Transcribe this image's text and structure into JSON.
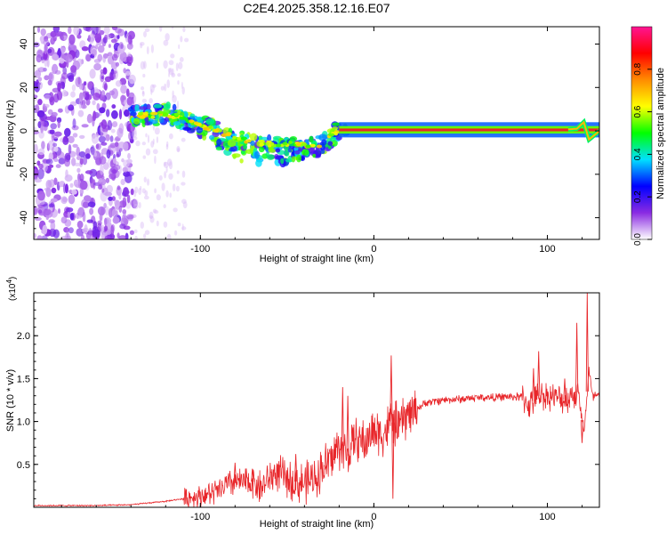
{
  "title": "C2E4.2025.358.12.16.E07",
  "colors": {
    "background": "#ffffff",
    "axis": "#000000",
    "snr_line": "#e8262a",
    "ridge": "#e8262a"
  },
  "chart_data": [
    {
      "type": "heatmap",
      "title": "C2E4.2025.358.12.16.E07",
      "xlabel": "Height of straight line (km)",
      "ylabel": "Frequency (Hz)",
      "xlim": [
        -196,
        130
      ],
      "ylim": [
        -50,
        48
      ],
      "xticks": [
        -100,
        0,
        100
      ],
      "yticks": [
        -40,
        -20,
        0,
        20,
        40
      ],
      "ridge": {
        "x": [
          -140,
          -130,
          -120,
          -110,
          -100,
          -90,
          -80,
          -70,
          -60,
          -50,
          -40,
          -33,
          -25,
          -20,
          -15,
          -10,
          0,
          10,
          20,
          50,
          100,
          117,
          121,
          124,
          130
        ],
        "y": [
          7,
          7,
          8,
          6,
          2,
          0,
          -3,
          -5,
          -6,
          -6,
          -6,
          -8,
          -3,
          0,
          1,
          1,
          1,
          1,
          0,
          0,
          0,
          1,
          4,
          -4,
          0
        ]
      },
      "colorbar": {
        "label": "Normalized spectral amplitude",
        "range": [
          0,
          1
        ],
        "ticks": [
          "0.0",
          "0.2",
          "0.4",
          "0.6",
          "0.8"
        ],
        "tick_values": [
          0.0,
          0.2,
          0.4,
          0.6,
          0.8
        ],
        "stops": [
          "#ffffff",
          "#8a2be2",
          "#0000ff",
          "#00e0ff",
          "#00ff00",
          "#ffff00",
          "#ff8c00",
          "#ff0000",
          "#ff1493"
        ]
      }
    },
    {
      "type": "line",
      "xlabel": "Height of straight line (km)",
      "ylabel": "SNR (10 * v/v)",
      "multiplier": "(x10",
      "multiplier_exp": "4",
      "xlim": [
        -196,
        130
      ],
      "ylim": [
        0,
        2.5
      ],
      "xticks": [
        -100,
        0,
        100
      ],
      "yticks": [
        "0.5",
        "1.0",
        "1.5",
        "2.0"
      ],
      "ytick_values": [
        0.5,
        1.0,
        1.5,
        2.0
      ],
      "series": [
        {
          "name": "SNR",
          "x": [
            -196,
            -160,
            -140,
            -130,
            -120,
            -110,
            -100,
            -90,
            -85,
            -80,
            -75,
            -70,
            -65,
            -60,
            -55,
            -50,
            -45,
            -40,
            -35,
            -30,
            -25,
            -20,
            -15,
            -10,
            -5,
            0,
            5,
            10,
            15,
            20,
            25,
            30,
            40,
            50,
            60,
            70,
            80,
            85,
            90,
            95,
            100,
            105,
            110,
            115,
            118,
            121,
            124,
            126,
            128,
            130
          ],
          "y": [
            0.02,
            0.02,
            0.03,
            0.05,
            0.07,
            0.1,
            0.13,
            0.18,
            0.25,
            0.3,
            0.28,
            0.3,
            0.22,
            0.35,
            0.4,
            0.32,
            0.3,
            0.28,
            0.33,
            0.45,
            0.55,
            0.7,
            0.6,
            0.8,
            0.75,
            0.9,
            0.85,
            1.0,
            0.95,
            1.1,
            1.15,
            1.22,
            1.25,
            1.26,
            1.28,
            1.28,
            1.29,
            1.28,
            1.2,
            1.3,
            1.3,
            1.28,
            1.25,
            1.32,
            1.35,
            0.85,
            1.6,
            1.28,
            1.3,
            1.28
          ],
          "spikes": [
            {
              "x": -80,
              "y": 0.52
            },
            {
              "x": -70,
              "y": 0.45
            },
            {
              "x": -45,
              "y": 0.62
            },
            {
              "x": -28,
              "y": 0.45
            },
            {
              "x": -18,
              "y": 1.4
            },
            {
              "x": -15,
              "y": 1.3
            },
            {
              "x": 10,
              "y": 1.77
            },
            {
              "x": 11,
              "y": 0.1
            },
            {
              "x": 92,
              "y": 1.62
            },
            {
              "x": 95,
              "y": 1.82
            },
            {
              "x": 110,
              "y": 1.5
            },
            {
              "x": 117,
              "y": 2.15
            },
            {
              "x": 120,
              "y": 0.75
            },
            {
              "x": 123,
              "y": 2.5
            }
          ]
        }
      ]
    }
  ]
}
